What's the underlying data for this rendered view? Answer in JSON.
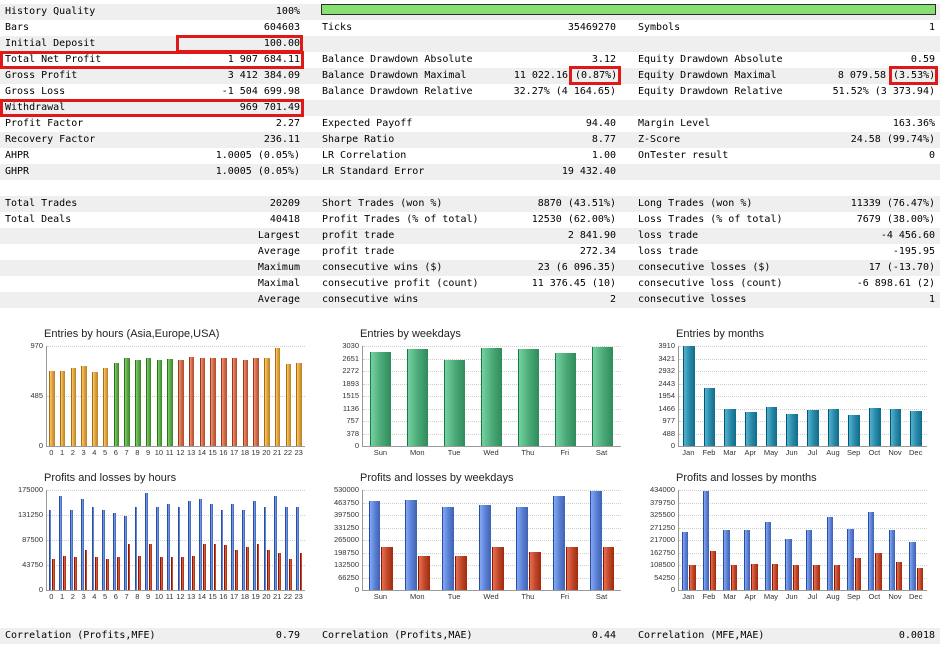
{
  "stats": {
    "history_quality": {
      "label": "History Quality",
      "value": "100%",
      "fill": 1.0
    },
    "bars": {
      "label": "Bars",
      "value": "604603"
    },
    "ticks": {
      "label": "Ticks",
      "value": "35469270"
    },
    "symbols": {
      "label": "Symbols",
      "value": "1"
    },
    "initial_deposit": {
      "label": "Initial Deposit",
      "value": "100.00"
    },
    "total_net_profit": {
      "label": "Total Net Profit",
      "value": "1 907 684.11"
    },
    "balance_dd_abs": {
      "label": "Balance Drawdown Absolute",
      "value": "3.12"
    },
    "equity_dd_abs": {
      "label": "Equity Drawdown Absolute",
      "value": "0.59"
    },
    "gross_profit": {
      "label": "Gross Profit",
      "value": "3 412 384.09"
    },
    "balance_dd_max": {
      "label": "Balance Drawdown Maximal",
      "value": "11 022.16",
      "pct": "(0.87%)"
    },
    "equity_dd_max": {
      "label": "Equity Drawdown Maximal",
      "value": "8 079.58",
      "pct": "(3.53%)"
    },
    "gross_loss": {
      "label": "Gross Loss",
      "value": "-1 504 699.98"
    },
    "balance_dd_rel": {
      "label": "Balance Drawdown Relative",
      "value": "32.27% (4 164.65)"
    },
    "equity_dd_rel": {
      "label": "Equity Drawdown Relative",
      "value": "51.52% (3 373.94)"
    },
    "withdrawal": {
      "label": "Withdrawal",
      "value": "969 701.49"
    },
    "profit_factor": {
      "label": "Profit Factor",
      "value": "2.27"
    },
    "expected_payoff": {
      "label": "Expected Payoff",
      "value": "94.40"
    },
    "margin_level": {
      "label": "Margin Level",
      "value": "163.36%"
    },
    "recovery_factor": {
      "label": "Recovery Factor",
      "value": "236.11"
    },
    "sharpe_ratio": {
      "label": "Sharpe Ratio",
      "value": "8.77"
    },
    "z_score": {
      "label": "Z-Score",
      "value": "24.58 (99.74%)"
    },
    "ahpr": {
      "label": "AHPR",
      "value": "1.0005 (0.05%)"
    },
    "lr_correlation": {
      "label": "LR Correlation",
      "value": "1.00"
    },
    "ontester": {
      "label": "OnTester result",
      "value": "0"
    },
    "ghpr": {
      "label": "GHPR",
      "value": "1.0005 (0.05%)"
    },
    "lr_std_error": {
      "label": "LR Standard Error",
      "value": "19 432.40"
    },
    "total_trades": {
      "label": "Total Trades",
      "value": "20209"
    },
    "short_trades": {
      "label": "Short Trades (won %)",
      "value": "8870 (43.51%)"
    },
    "long_trades": {
      "label": "Long Trades (won %)",
      "value": "11339 (76.47%)"
    },
    "total_deals": {
      "label": "Total Deals",
      "value": "40418"
    },
    "profit_trades": {
      "label": "Profit Trades (% of total)",
      "value": "12530 (62.00%)"
    },
    "loss_trades": {
      "label": "Loss Trades (% of total)",
      "value": "7679 (38.00%)"
    },
    "largest": {
      "label": "Largest",
      "profit_label": "profit trade",
      "profit_value": "2 841.90",
      "loss_label": "loss trade",
      "loss_value": "-4 456.60"
    },
    "average": {
      "label": "Average",
      "profit_label": "profit trade",
      "profit_value": "272.34",
      "loss_label": "loss trade",
      "loss_value": "-195.95"
    },
    "maximum": {
      "label": "Maximum",
      "profit_label": "consecutive wins ($)",
      "profit_value": "23 (6 096.35)",
      "loss_label": "consecutive losses ($)",
      "loss_value": "17 (-13.70)"
    },
    "maximal": {
      "label": "Maximal",
      "profit_label": "consecutive profit (count)",
      "profit_value": "11 376.45 (10)",
      "loss_label": "consecutive loss (count)",
      "loss_value": "-6 898.61 (2)"
    },
    "average2": {
      "label": "Average",
      "profit_label": "consecutive wins",
      "profit_value": "2",
      "loss_label": "consecutive losses",
      "loss_value": "1"
    },
    "corr_mfe": {
      "label": "Correlation (Profits,MFE)",
      "value": "0.79"
    },
    "corr_mae": {
      "label": "Correlation (Profits,MAE)",
      "value": "0.44"
    },
    "corr_mfe_mae": {
      "label": "Correlation (MFE,MAE)",
      "value": "0.0018"
    }
  },
  "colors": {
    "highlight": "#e01818",
    "quality_bar": "#88e070",
    "row_shade": "#efefef"
  },
  "chart_data": [
    {
      "type": "bar",
      "title": "Entries by hours (Asia,Europe,USA)",
      "categories": [
        "0",
        "1",
        "2",
        "3",
        "4",
        "5",
        "6",
        "7",
        "8",
        "9",
        "10",
        "11",
        "12",
        "13",
        "14",
        "15",
        "16",
        "17",
        "18",
        "19",
        "20",
        "21",
        "22",
        "23"
      ],
      "series": [
        {
          "values": [
            730,
            730,
            760,
            780,
            720,
            760,
            810,
            850,
            830,
            850,
            830,
            840,
            830,
            860,
            850,
            850,
            850,
            850,
            830,
            850,
            850,
            950,
            800,
            810
          ]
        }
      ],
      "yticks": [
        "0",
        "485",
        "970"
      ],
      "ylim": [
        0,
        970
      ],
      "colors": [
        "#d8a040",
        "#d8a040",
        "#d8a040",
        "#d8a040",
        "#d8a040",
        "#d8a040",
        "#5aa545",
        "#5aa545",
        "#5aa545",
        "#5aa545",
        "#5aa545",
        "#5aa545",
        "#cc6a4a",
        "#cc6a4a",
        "#cc6a4a",
        "#cc6a4a",
        "#cc6a4a",
        "#cc6a4a",
        "#cc6a4a",
        "#cc6a4a",
        "#d8a040",
        "#d8a040",
        "#d8a040",
        "#d8a040"
      ]
    },
    {
      "type": "bar",
      "title": "Entries by weekdays",
      "categories": [
        "Sun",
        "Mon",
        "Tue",
        "Wed",
        "Thu",
        "Fri",
        "Sat"
      ],
      "series": [
        {
          "values": [
            2850,
            2950,
            2600,
            2980,
            2930,
            2830,
            3010
          ]
        }
      ],
      "yticks": [
        "0",
        "378",
        "757",
        "1136",
        "1515",
        "1893",
        "2272",
        "2651",
        "3030"
      ],
      "ylim": [
        0,
        3030
      ],
      "colors": [
        "#4caa78"
      ]
    },
    {
      "type": "bar",
      "title": "Entries by months",
      "categories": [
        "Jan",
        "Feb",
        "Mar",
        "Apr",
        "May",
        "Jun",
        "Jul",
        "Aug",
        "Sep",
        "Oct",
        "Nov",
        "Dec"
      ],
      "series": [
        {
          "values": [
            3900,
            2250,
            1460,
            1330,
            1510,
            1240,
            1400,
            1450,
            1220,
            1500,
            1460,
            1360
          ]
        }
      ],
      "yticks": [
        "0",
        "488",
        "977",
        "1466",
        "1954",
        "2443",
        "2932",
        "3421",
        "3910"
      ],
      "ylim": [
        0,
        3910
      ],
      "colors": [
        "#2a8aa8"
      ]
    },
    {
      "type": "bar",
      "title": "Profits and losses by hours",
      "categories": [
        "0",
        "1",
        "2",
        "3",
        "4",
        "5",
        "6",
        "7",
        "8",
        "9",
        "10",
        "11",
        "12",
        "13",
        "14",
        "15",
        "16",
        "17",
        "18",
        "19",
        "20",
        "21",
        "22",
        "23"
      ],
      "series": [
        {
          "values": [
            140000,
            165000,
            140000,
            160000,
            145000,
            140000,
            135000,
            130000,
            145000,
            170000,
            145000,
            150000,
            145000,
            155000,
            160000,
            150000,
            140000,
            150000,
            140000,
            155000,
            145000,
            165000,
            145000,
            145000
          ]
        },
        {
          "values": [
            55000,
            60000,
            58000,
            70000,
            58000,
            55000,
            58000,
            80000,
            60000,
            80000,
            58000,
            58000,
            58000,
            60000,
            80000,
            80000,
            78000,
            70000,
            75000,
            80000,
            70000,
            65000,
            55000,
            65000
          ]
        }
      ],
      "yticks": [
        "0",
        "43750",
        "87500",
        "131250",
        "175000"
      ],
      "ylim": [
        0,
        175000
      ],
      "colors": [
        "#5b7fd1",
        "#c0482a"
      ]
    },
    {
      "type": "bar",
      "title": "Profits and losses by weekdays",
      "categories": [
        "Sun",
        "Mon",
        "Tue",
        "Wed",
        "Thu",
        "Fri",
        "Sat"
      ],
      "series": [
        {
          "values": [
            470000,
            475000,
            440000,
            450000,
            440000,
            500000,
            525000
          ]
        },
        {
          "values": [
            230000,
            180000,
            180000,
            230000,
            200000,
            230000,
            230000
          ]
        }
      ],
      "yticks": [
        "0",
        "66250",
        "132500",
        "198750",
        "265000",
        "331250",
        "397500",
        "463750",
        "530000"
      ],
      "ylim": [
        0,
        530000
      ],
      "colors": [
        "#5b7fd1",
        "#c0482a"
      ]
    },
    {
      "type": "bar",
      "title": "Profits and losses by months",
      "categories": [
        "Jan",
        "Feb",
        "Mar",
        "Apr",
        "May",
        "Jun",
        "Jul",
        "Aug",
        "Sep",
        "Oct",
        "Nov",
        "Dec"
      ],
      "series": [
        {
          "values": [
            250000,
            430000,
            260000,
            260000,
            295000,
            220000,
            260000,
            315000,
            265000,
            340000,
            260000,
            210000
          ]
        },
        {
          "values": [
            110000,
            170000,
            110000,
            115000,
            115000,
            110000,
            110000,
            110000,
            140000,
            160000,
            120000,
            95000
          ]
        }
      ],
      "yticks": [
        "0",
        "54250",
        "108500",
        "162750",
        "217000",
        "271250",
        "325500",
        "379750",
        "434000"
      ],
      "ylim": [
        0,
        434000
      ],
      "colors": [
        "#5b7fd1",
        "#c0482a"
      ]
    }
  ]
}
